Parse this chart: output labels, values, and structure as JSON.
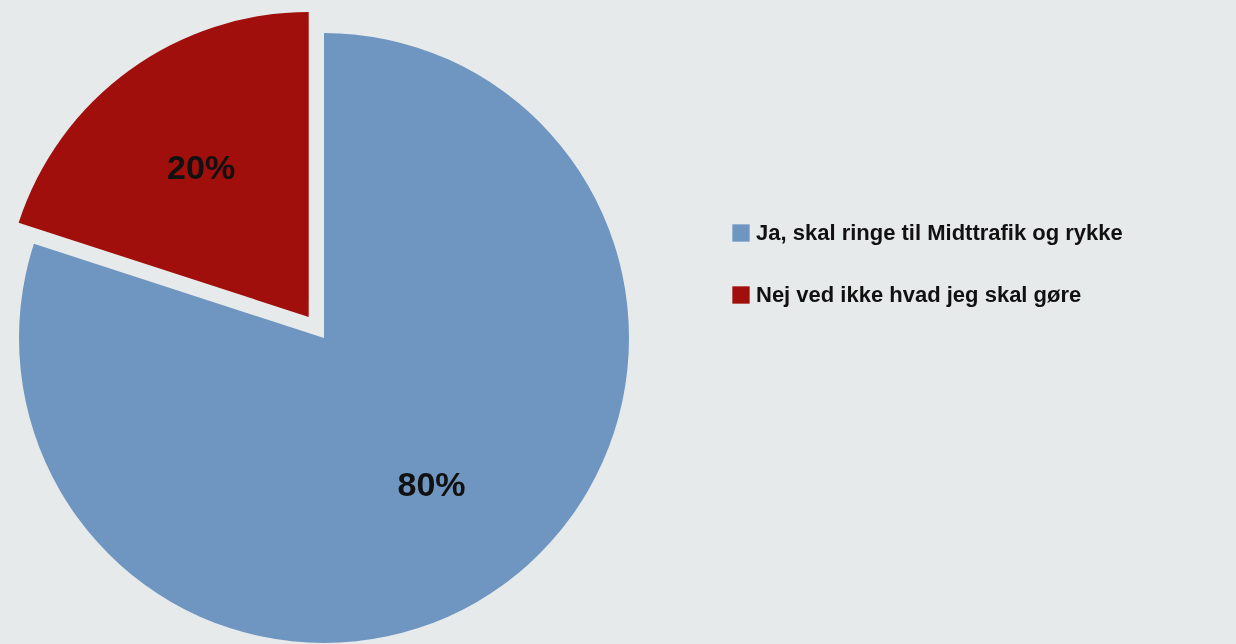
{
  "chart_data": {
    "type": "pie",
    "categories": [
      "Ja, skal ringe til Midttrafik og rykke",
      "Nej ved ikke hvad jeg skal gøre"
    ],
    "values": [
      80,
      20
    ],
    "colors": [
      "#6f96c1",
      "#a00f0b"
    ],
    "value_labels": [
      "80%",
      "20%"
    ],
    "legend": "right"
  }
}
